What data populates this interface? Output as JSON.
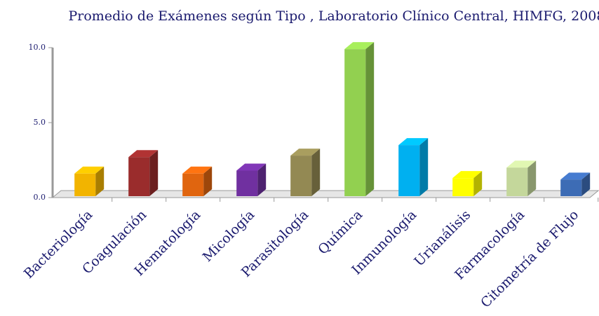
{
  "chart_data": {
    "type": "bar3d",
    "title": "Promedio de Exámenes según Tipo ,  Laboratorio Clínico Central, HIMFG, 2008",
    "categories": [
      "Bacteriología",
      "Coagulación",
      "Hematología",
      "Micología",
      "Parasitología",
      "Química",
      "Inmunología",
      "Urianálisis",
      "Farmacología",
      "Citometría  de Flujo"
    ],
    "values": [
      1.6,
      2.7,
      1.6,
      1.8,
      2.8,
      9.9,
      3.5,
      1.3,
      2.0,
      1.2
    ],
    "colors": [
      "#f2b400",
      "#9a2c2c",
      "#e0650f",
      "#7030a0",
      "#938953",
      "#92d050",
      "#00b0f0",
      "#ffff00",
      "#c4d79b",
      "#3d6cb5"
    ],
    "ylim": [
      0,
      10
    ],
    "yticks": [
      {
        "value": 0,
        "label": "0.0"
      },
      {
        "value": 5,
        "label": "5.0"
      },
      {
        "value": 10,
        "label": "10.0"
      }
    ]
  }
}
